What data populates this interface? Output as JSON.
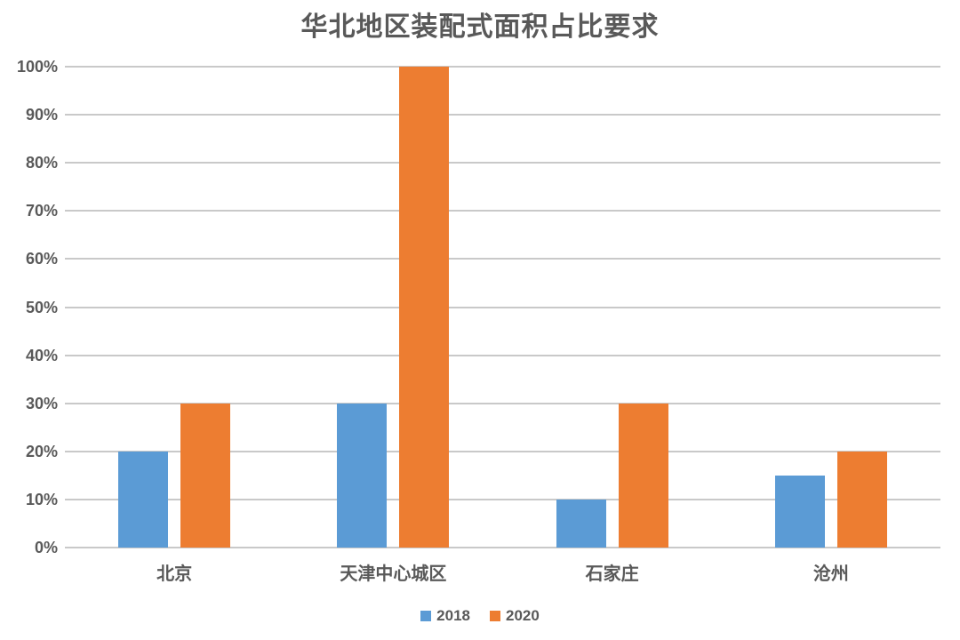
{
  "chart_data": {
    "type": "bar",
    "title": "华北地区装配式面积占比要求",
    "categories": [
      "北京",
      "天津中心城区",
      "石家庄",
      "沧州"
    ],
    "series": [
      {
        "name": "2018",
        "color": "#5B9BD5",
        "values": [
          20,
          30,
          10,
          15
        ]
      },
      {
        "name": "2020",
        "color": "#ED7D31",
        "values": [
          30,
          100,
          30,
          20
        ]
      }
    ],
    "ylabel": "",
    "xlabel": "",
    "ylim": [
      0,
      100
    ],
    "ytick_step": 10,
    "ytick_labels": [
      "0%",
      "10%",
      "20%",
      "30%",
      "40%",
      "50%",
      "60%",
      "70%",
      "80%",
      "90%",
      "100%"
    ],
    "grid": true,
    "legend_position": "bottom-center",
    "colors": {
      "text": "#595959",
      "gridline": "#C9C9C9",
      "background": "#FFFFFF"
    }
  }
}
